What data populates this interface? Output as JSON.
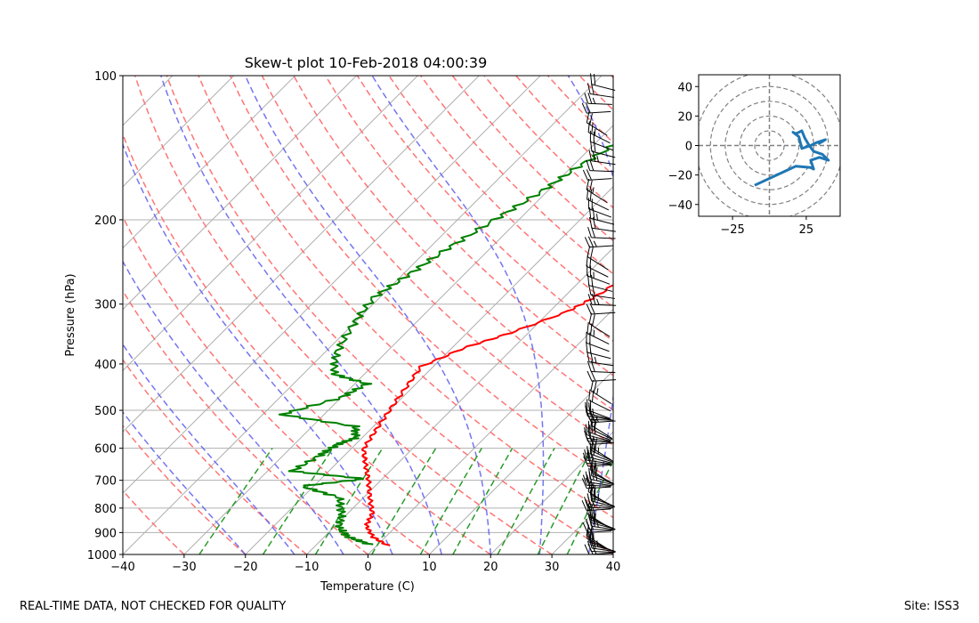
{
  "footer": {
    "quality_note": "REAL-TIME DATA, NOT CHECKED FOR QUALITY",
    "site": "Site: ISS3"
  },
  "colors": {
    "temperature": "#ff0000",
    "dewpoint": "#008000",
    "dry_adiabat": "#ff6666",
    "moist_adiabat": "#6666ee",
    "mixing_ratio": "#2a9a2a",
    "isotherm": "#b0b0b0",
    "hodograph": "#1f77b4"
  },
  "chart_data": [
    {
      "type": "line",
      "title": "Skew-t plot 10-Feb-2018 04:00:39",
      "xlabel": "Temperature (C)",
      "ylabel": "Pressure (hPa)",
      "x_ticks": [
        -40,
        -30,
        -20,
        -10,
        0,
        10,
        20,
        30,
        40
      ],
      "y_ticks": [
        100,
        200,
        300,
        400,
        500,
        600,
        700,
        800,
        900,
        1000
      ],
      "xlim": [
        -40,
        40
      ],
      "ylim": [
        1000,
        100
      ],
      "y_scale": "log",
      "grid": true,
      "series": [
        {
          "role": "temperature",
          "points": [
            [
              2,
              960
            ],
            [
              -2,
              920
            ],
            [
              -5,
              870
            ],
            [
              -6,
              820
            ],
            [
              -9,
              760
            ],
            [
              -12,
              700
            ],
            [
              -15,
              650
            ],
            [
              -18,
              600
            ],
            [
              -19,
              550
            ],
            [
              -20,
              500
            ],
            [
              -21,
              450
            ],
            [
              -22,
              405
            ],
            [
              -18,
              370
            ],
            [
              -13,
              345
            ],
            [
              -7,
              310
            ],
            [
              -5,
              290
            ],
            [
              -3,
              260
            ],
            [
              2,
              230
            ],
            [
              6,
              200
            ],
            [
              9,
              175
            ],
            [
              13,
              155
            ],
            [
              17,
              135
            ],
            [
              21,
              118
            ],
            [
              25,
              108
            ],
            [
              28,
              100
            ]
          ]
        },
        {
          "role": "dewpoint",
          "points": [
            [
              -1,
              955
            ],
            [
              -6,
              920
            ],
            [
              -9,
              880
            ],
            [
              -11,
              820
            ],
            [
              -14,
              760
            ],
            [
              -22,
              720
            ],
            [
              -13,
              695
            ],
            [
              -26,
              670
            ],
            [
              -24,
              620
            ],
            [
              -23,
              590
            ],
            [
              -21,
              570
            ],
            [
              -23,
              540
            ],
            [
              -37,
              510
            ],
            [
              -30,
              470
            ],
            [
              -28,
              440
            ],
            [
              -35,
              420
            ],
            [
              -38,
              380
            ],
            [
              -40,
              330
            ],
            [
              -41,
              290
            ],
            [
              -39,
              260
            ],
            [
              -37,
              230
            ],
            [
              -34,
              200
            ],
            [
              -31,
              175
            ],
            [
              -29,
              155
            ],
            [
              -26,
              135
            ],
            [
              -22,
              115
            ],
            [
              -19,
              100
            ]
          ]
        }
      ],
      "wind_barbs": "shown along right edge, 100-1000 hPa"
    },
    {
      "type": "line",
      "title": "",
      "x_ticks": [
        -25,
        25
      ],
      "y_ticks": [
        -40,
        -20,
        0,
        20,
        40
      ],
      "xlim": [
        -48,
        48
      ],
      "ylim": [
        -48,
        48
      ],
      "rings": [
        10,
        20,
        30,
        40,
        50
      ],
      "series": [
        {
          "role": "hodograph",
          "points": [
            [
              -10,
              -27
            ],
            [
              18,
              -14
            ],
            [
              28,
              -15
            ],
            [
              30,
              -16
            ],
            [
              28,
              -10
            ],
            [
              34,
              -8
            ],
            [
              40,
              -10
            ],
            [
              36,
              -6
            ],
            [
              30,
              -4
            ],
            [
              27,
              0
            ],
            [
              24,
              5
            ],
            [
              22,
              10
            ],
            [
              18,
              8
            ],
            [
              16,
              9
            ],
            [
              20,
              6
            ],
            [
              22,
              -2
            ],
            [
              28,
              0
            ],
            [
              32,
              2
            ],
            [
              38,
              4
            ],
            [
              33,
              1
            ]
          ]
        }
      ]
    }
  ]
}
